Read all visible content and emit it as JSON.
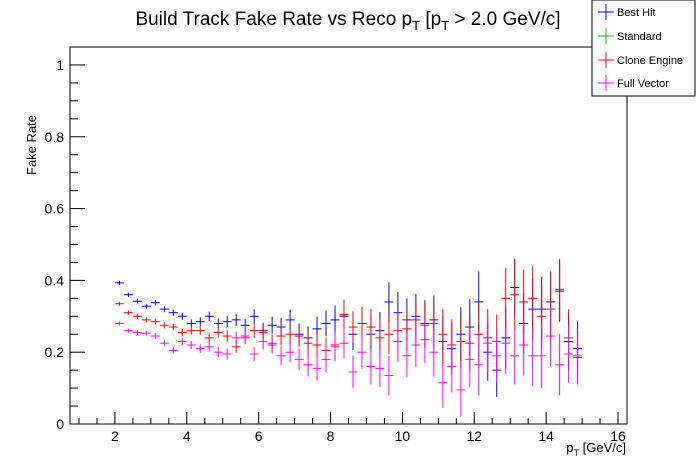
{
  "chart_data": {
    "type": "scatter",
    "title": {
      "main": "Build Track Fake Rate vs Reco p",
      "sub1": "T",
      "mid": " [p",
      "sub2": "T",
      "tail": " > 2.0 GeV/c]"
    },
    "xlabel": {
      "main": "p",
      "sub": "T",
      "tail": " [GeV/c]"
    },
    "ylabel": "Fake Rate",
    "xlim": [
      0.75,
      16.25
    ],
    "ylim": [
      0,
      1.05
    ],
    "x_ticks": [
      "2",
      "4",
      "6",
      "8",
      "10",
      "12",
      "14",
      "16"
    ],
    "y_ticks": [
      "0",
      "0.2",
      "0.4",
      "0.6",
      "0.8",
      "1"
    ],
    "grid": false,
    "legend_position": "top-right",
    "bin_half_width": 0.125,
    "x": [
      2.125,
      2.375,
      2.625,
      2.875,
      3.125,
      3.375,
      3.625,
      3.875,
      4.125,
      4.375,
      4.625,
      4.875,
      5.125,
      5.375,
      5.625,
      5.875,
      6.125,
      6.375,
      6.625,
      6.875,
      7.125,
      7.375,
      7.625,
      7.875,
      8.125,
      8.375,
      8.625,
      8.875,
      9.125,
      9.375,
      9.625,
      9.875,
      10.125,
      10.375,
      10.625,
      10.875,
      11.125,
      11.375,
      11.625,
      11.875,
      12.125,
      12.375,
      12.625,
      12.875,
      13.125,
      13.375,
      13.625,
      13.875,
      14.125,
      14.375,
      14.625,
      14.875
    ],
    "series": [
      {
        "name": "Best Hit",
        "color": "#0000ff",
        "values": [
          0.393,
          0.36,
          0.342,
          0.328,
          0.338,
          0.32,
          0.31,
          0.3,
          0.28,
          0.285,
          0.3,
          0.28,
          0.285,
          0.29,
          0.275,
          0.3,
          0.26,
          0.275,
          0.27,
          0.29,
          0.25,
          0.24,
          0.265,
          0.28,
          0.29,
          0.3,
          0.25,
          0.28,
          0.25,
          0.26,
          0.34,
          0.31,
          0.29,
          0.3,
          0.28,
          0.29,
          0.23,
          0.21,
          0.25,
          0.27,
          0.34,
          0.2,
          0.15,
          0.24,
          0.38,
          0.28,
          0.32,
          0.32,
          0.34,
          0.37,
          0.23,
          0.21
        ],
        "errors": [
          0.006,
          0.006,
          0.007,
          0.007,
          0.008,
          0.009,
          0.009,
          0.01,
          0.011,
          0.012,
          0.013,
          0.014,
          0.016,
          0.017,
          0.018,
          0.02,
          0.022,
          0.024,
          0.026,
          0.028,
          0.03,
          0.032,
          0.034,
          0.036,
          0.04,
          0.042,
          0.044,
          0.046,
          0.05,
          0.052,
          0.055,
          0.058,
          0.06,
          0.062,
          0.065,
          0.068,
          0.07,
          0.072,
          0.075,
          0.078,
          0.085,
          0.08,
          0.075,
          0.085,
          0.08,
          0.085,
          0.085,
          0.09,
          0.085,
          0.085,
          0.08,
          0.075
        ]
      },
      {
        "name": "Standard",
        "color": "#00bb00",
        "values": [],
        "errors": []
      },
      {
        "name": "Clone Engine",
        "color": "#ff0000",
        "values": [
          0.335,
          0.31,
          0.3,
          0.29,
          0.285,
          0.275,
          0.27,
          0.255,
          0.26,
          0.26,
          0.24,
          0.255,
          0.245,
          0.215,
          0.24,
          0.26,
          0.255,
          0.225,
          0.245,
          0.25,
          0.245,
          0.225,
          0.22,
          0.205,
          0.22,
          0.305,
          0.27,
          0.28,
          0.27,
          0.24,
          0.25,
          0.26,
          0.265,
          0.29,
          0.275,
          0.28,
          0.25,
          0.22,
          0.23,
          0.225,
          0.25,
          0.24,
          0.23,
          0.35,
          0.36,
          0.34,
          0.35,
          0.3,
          0.32,
          0.375,
          0.24,
          0.185
        ],
        "errors": [
          0.006,
          0.006,
          0.007,
          0.007,
          0.008,
          0.009,
          0.009,
          0.01,
          0.011,
          0.012,
          0.013,
          0.014,
          0.016,
          0.017,
          0.018,
          0.02,
          0.022,
          0.024,
          0.026,
          0.028,
          0.03,
          0.032,
          0.034,
          0.036,
          0.04,
          0.042,
          0.044,
          0.046,
          0.05,
          0.052,
          0.055,
          0.058,
          0.06,
          0.062,
          0.065,
          0.068,
          0.07,
          0.072,
          0.075,
          0.078,
          0.085,
          0.08,
          0.075,
          0.085,
          0.1,
          0.09,
          0.09,
          0.09,
          0.1,
          0.085,
          0.08,
          0.075
        ]
      },
      {
        "name": "Full Vector",
        "color": "#ff00ff",
        "values": [
          0.28,
          0.26,
          0.255,
          0.253,
          0.245,
          0.225,
          0.205,
          0.23,
          0.22,
          0.21,
          0.215,
          0.2,
          0.195,
          0.24,
          0.245,
          0.195,
          0.23,
          0.22,
          0.19,
          0.2,
          0.18,
          0.165,
          0.155,
          0.18,
          0.215,
          0.225,
          0.145,
          0.2,
          0.16,
          0.155,
          0.135,
          0.23,
          0.19,
          0.22,
          0.235,
          0.2,
          0.115,
          0.16,
          0.095,
          0.18,
          0.165,
          0.225,
          0.19,
          0.225,
          0.19,
          0.22,
          0.19,
          0.19,
          0.245,
          0.165,
          0.195,
          0.19
        ],
        "errors": [
          0.006,
          0.006,
          0.007,
          0.007,
          0.008,
          0.009,
          0.009,
          0.01,
          0.011,
          0.012,
          0.013,
          0.014,
          0.016,
          0.017,
          0.018,
          0.02,
          0.022,
          0.024,
          0.026,
          0.028,
          0.03,
          0.032,
          0.034,
          0.036,
          0.04,
          0.042,
          0.044,
          0.046,
          0.05,
          0.052,
          0.055,
          0.058,
          0.06,
          0.062,
          0.065,
          0.068,
          0.07,
          0.072,
          0.075,
          0.078,
          0.085,
          0.08,
          0.075,
          0.085,
          0.08,
          0.085,
          0.085,
          0.09,
          0.085,
          0.085,
          0.08,
          0.075
        ]
      }
    ]
  }
}
